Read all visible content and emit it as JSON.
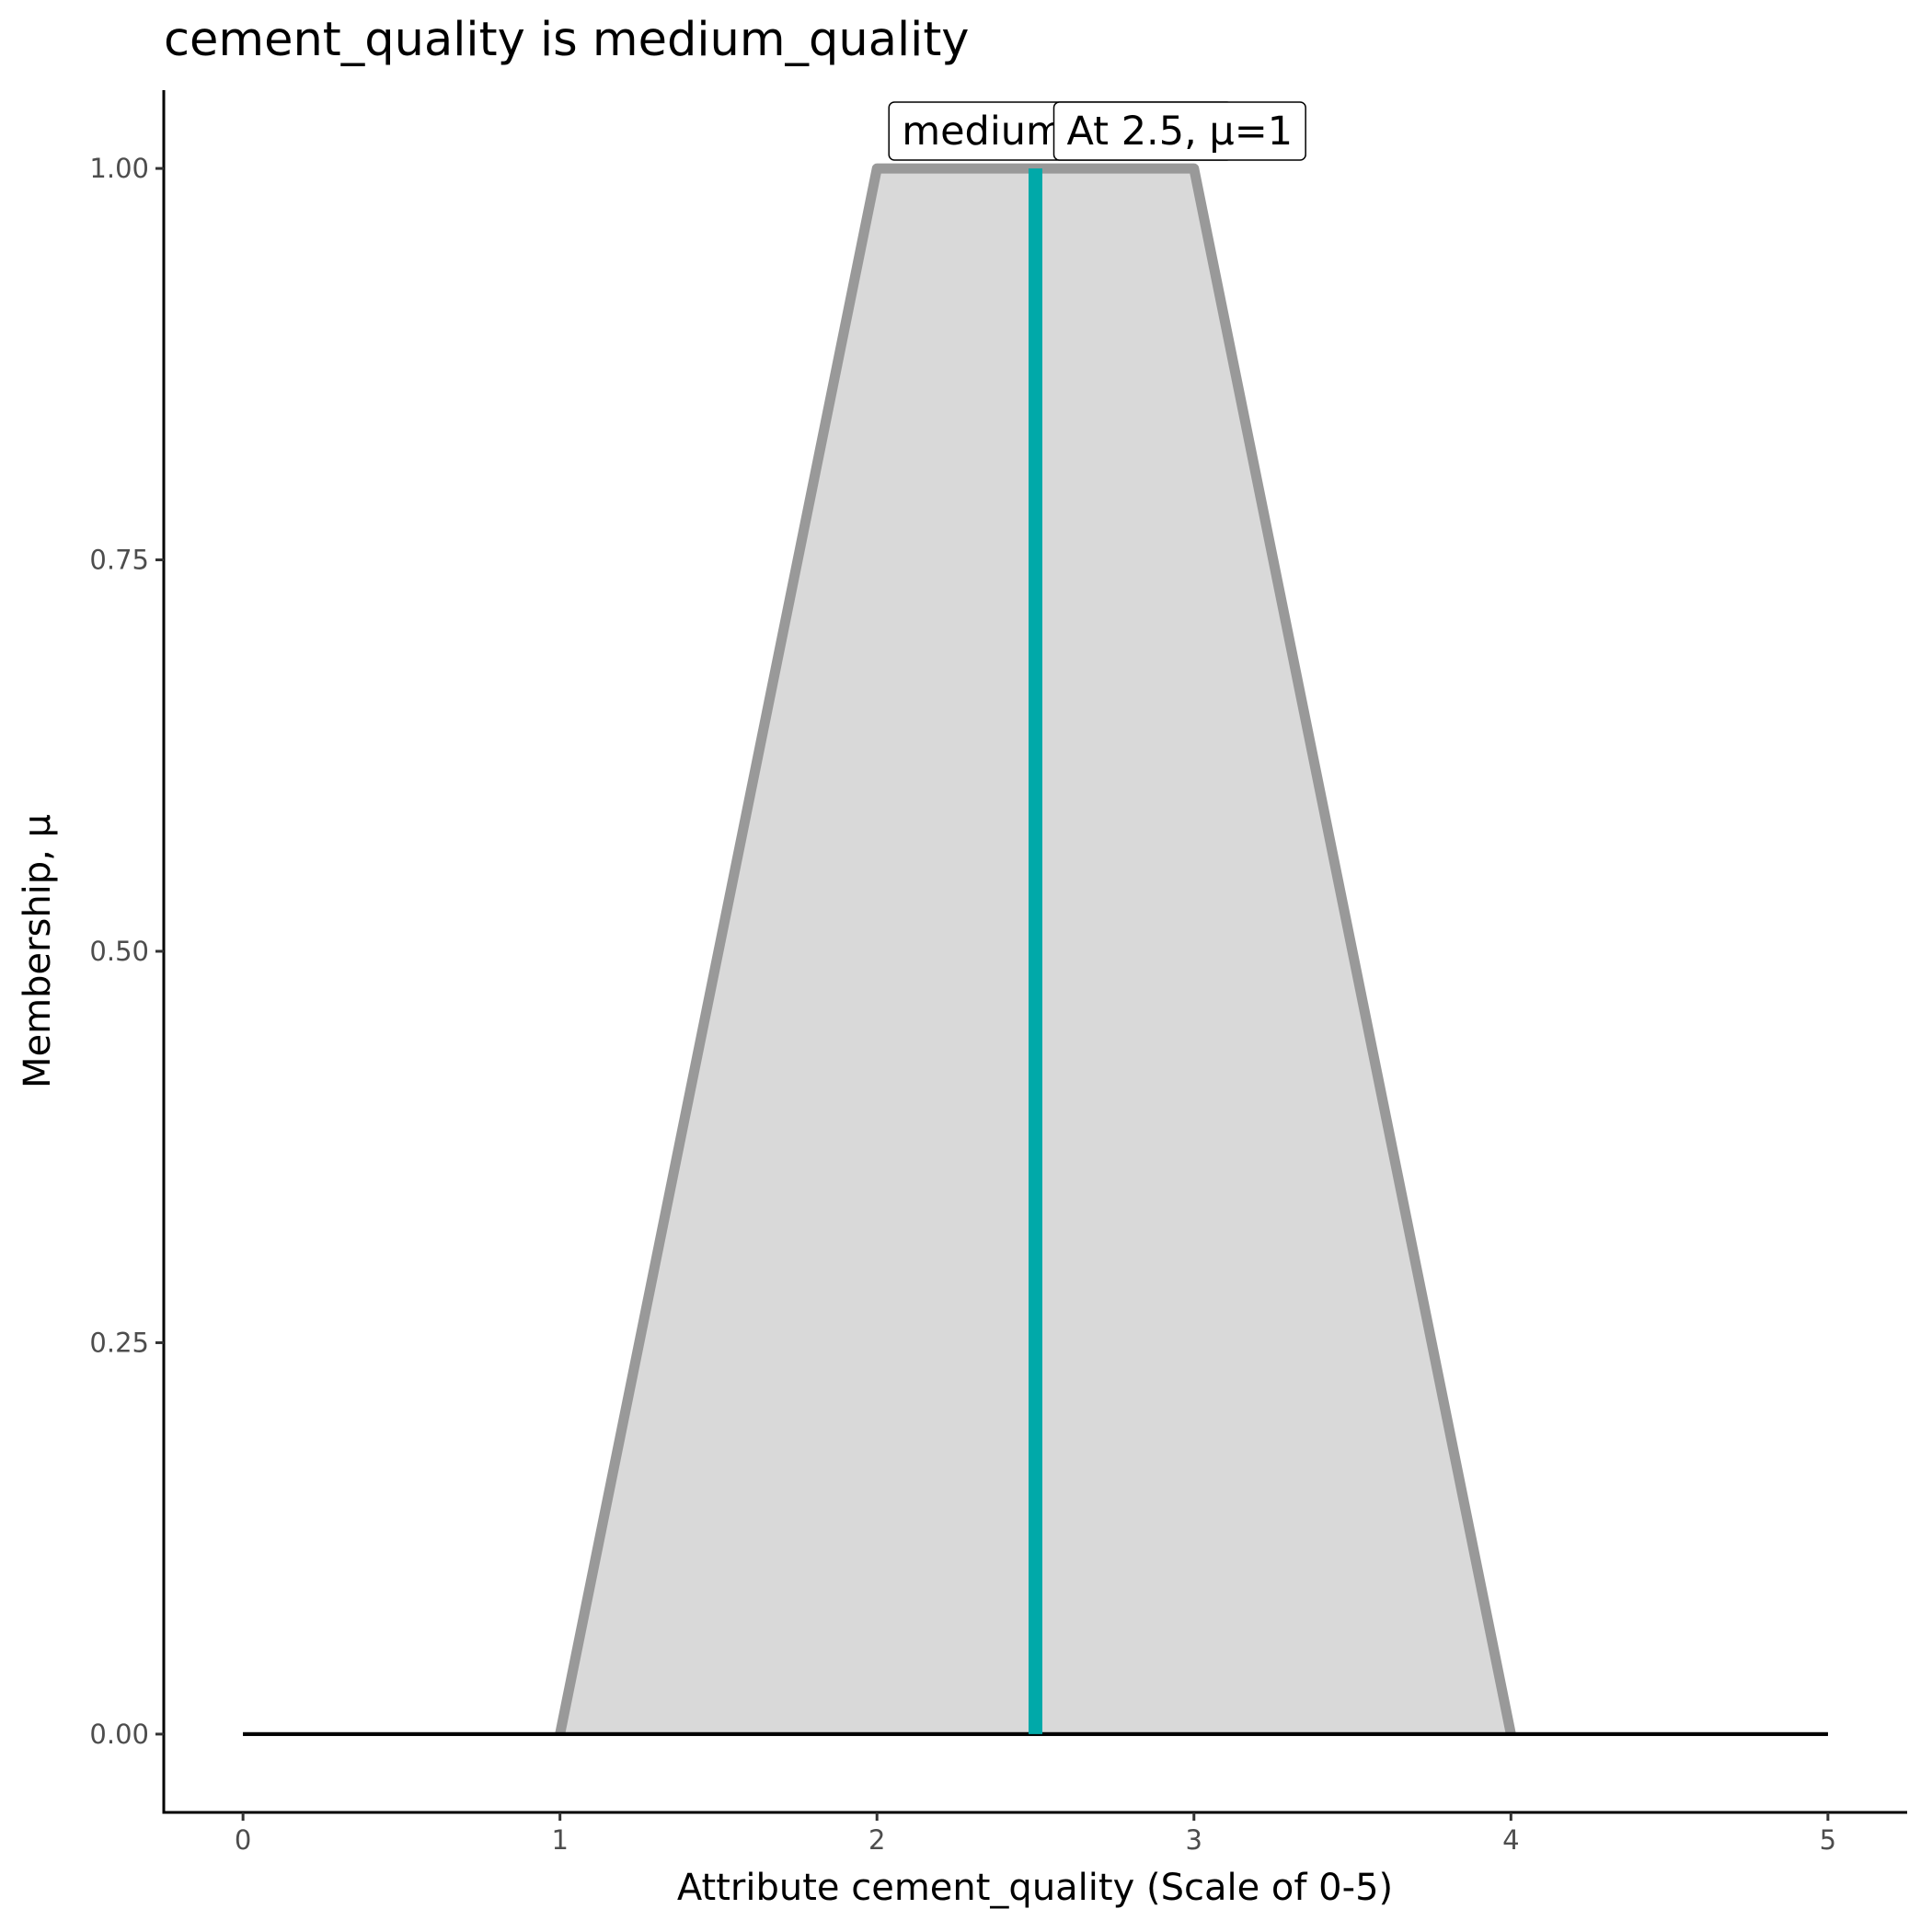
{
  "chart_data": {
    "type": "line",
    "title": "cement_quality is medium_quality",
    "x_label": "Attribute cement_quality (Scale of 0-5)",
    "y_label": "Membership, μ",
    "series": [
      {
        "x": [
          0,
          5
        ],
        "values": [
          0,
          0
        ],
        "color": "#000000"
      },
      {
        "x": [
          1,
          2,
          3,
          4
        ],
        "values": [
          0,
          1,
          1,
          0
        ],
        "color": "#999999",
        "fill": "#d9d9d9"
      }
    ],
    "marker": {
      "x": 2.5,
      "values": [
        0,
        1
      ],
      "color": "#00a9a9"
    },
    "annotations": [
      "medium_quality",
      "At 2.5, μ=1"
    ],
    "xlim": [
      -0.25,
      5.25
    ],
    "ylim": [
      -0.05,
      1.05
    ],
    "xticks": [
      0,
      1,
      2,
      3,
      4,
      5
    ],
    "yticks": [
      {
        "value": 0,
        "label": "0.00"
      },
      {
        "value": 0.25,
        "label": "0.25"
      },
      {
        "value": 0.5,
        "label": "0.50"
      },
      {
        "value": 0.75,
        "label": "0.75"
      },
      {
        "value": 1,
        "label": "1.00"
      }
    ]
  }
}
